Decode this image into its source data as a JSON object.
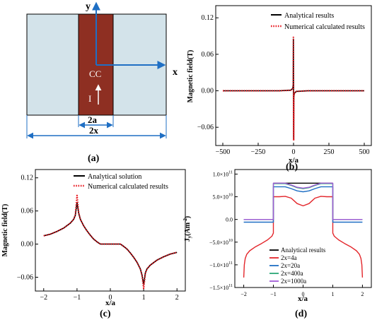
{
  "panels": {
    "a": {
      "label": "(a)",
      "axis_y": "y",
      "axis_x": "x",
      "conductor": "CC",
      "current": "I",
      "width_2a": "2a",
      "width_2x": "2x",
      "colors": {
        "slab": "#d3e3ea",
        "conductor": "#8e2f22",
        "arrow": "#1f6fc4"
      }
    },
    "b": {
      "label": "(b)"
    },
    "c": {
      "label": "(c)"
    },
    "d": {
      "label": "(d)"
    }
  },
  "chart_data": [
    {
      "panel": "b",
      "type": "line",
      "xlabel": "x/a",
      "ylabel": "Magnetic field(T)",
      "xlim": [
        -550,
        550
      ],
      "ylim": [
        -0.09,
        0.14
      ],
      "xticks": [
        -500,
        -250,
        0,
        250,
        500
      ],
      "xtick_labels": [
        "−500",
        "−250",
        "0",
        "250",
        "500"
      ],
      "yticks": [
        -0.06,
        0.0,
        0.06,
        0.12
      ],
      "ytick_labels": [
        "−0.06",
        "0.00",
        "0.06",
        "0.12"
      ],
      "legend": "top-right",
      "series": [
        {
          "name": "Analytical results",
          "color": "#000000",
          "style": "solid",
          "x": [
            -500,
            -100,
            -20,
            -5,
            -2,
            -1,
            0,
            1,
            2,
            5,
            20,
            100,
            500
          ],
          "y": [
            0.0,
            0.0,
            0.001,
            0.004,
            0.01,
            0.085,
            0.0,
            -0.078,
            -0.01,
            -0.004,
            -0.001,
            0.0,
            0.0
          ]
        },
        {
          "name": "Numerical calculated results",
          "color": "#e8141c",
          "style": "dotted",
          "x": [
            -500,
            -100,
            -20,
            -5,
            -2,
            -1,
            0,
            1,
            2,
            5,
            20,
            100,
            500
          ],
          "y": [
            0.0,
            0.0,
            0.001,
            0.004,
            0.01,
            0.088,
            0.0,
            -0.082,
            -0.01,
            -0.004,
            -0.001,
            0.0,
            0.0
          ]
        }
      ]
    },
    {
      "panel": "c",
      "type": "line",
      "xlabel": "x/a",
      "ylabel": "Magnetic field(T)",
      "xlim": [
        -2.25,
        2.25
      ],
      "ylim": [
        -0.085,
        0.135
      ],
      "xticks": [
        -2,
        -1,
        0,
        1,
        2
      ],
      "xtick_labels": [
        "−2",
        "−1",
        "0",
        "1",
        "2"
      ],
      "yticks": [
        -0.06,
        0.0,
        0.06,
        0.12
      ],
      "ytick_labels": [
        "−0.06",
        "0.00",
        "0.06",
        "0.12"
      ],
      "legend": "top-right",
      "series": [
        {
          "name": "Analytical solution",
          "color": "#000000",
          "style": "solid",
          "x": [
            -2.0,
            -1.8,
            -1.6,
            -1.4,
            -1.2,
            -1.1,
            -1.05,
            -1.0,
            -0.95,
            -0.9,
            -0.8,
            -0.7,
            -0.6,
            -0.5,
            -0.4,
            -0.3,
            0.3,
            0.4,
            0.5,
            0.6,
            0.7,
            0.8,
            0.9,
            0.95,
            1.0,
            1.05,
            1.1,
            1.2,
            1.4,
            1.6,
            1.8,
            2.0
          ],
          "y": [
            0.015,
            0.018,
            0.023,
            0.029,
            0.038,
            0.045,
            0.052,
            0.075,
            0.056,
            0.045,
            0.033,
            0.024,
            0.016,
            0.009,
            0.004,
            0.0,
            0.0,
            -0.004,
            -0.009,
            -0.016,
            -0.024,
            -0.033,
            -0.045,
            -0.056,
            -0.073,
            -0.052,
            -0.045,
            -0.038,
            -0.029,
            -0.023,
            -0.018,
            -0.015
          ]
        },
        {
          "name": "Numerical calculated results",
          "color": "#e8141c",
          "style": "dotted",
          "x": [
            -2.0,
            -1.8,
            -1.6,
            -1.4,
            -1.2,
            -1.1,
            -1.05,
            -1.0,
            -0.95,
            -0.9,
            -0.8,
            -0.7,
            -0.6,
            -0.5,
            -0.4,
            -0.3,
            0.3,
            0.4,
            0.5,
            0.6,
            0.7,
            0.8,
            0.9,
            0.95,
            1.0,
            1.05,
            1.1,
            1.2,
            1.4,
            1.6,
            1.8,
            2.0
          ],
          "y": [
            0.015,
            0.018,
            0.023,
            0.029,
            0.038,
            0.045,
            0.053,
            0.088,
            0.057,
            0.045,
            0.033,
            0.024,
            0.016,
            0.009,
            0.004,
            0.0,
            0.0,
            -0.004,
            -0.009,
            -0.016,
            -0.024,
            -0.033,
            -0.045,
            -0.057,
            -0.08,
            -0.053,
            -0.045,
            -0.038,
            -0.029,
            -0.023,
            -0.018,
            -0.015
          ]
        }
      ]
    },
    {
      "panel": "d",
      "type": "line",
      "xlabel": "x/a",
      "ylabel": "J",
      "ylabel_sub": "y",
      "ylabel_unit": "(Am",
      "ylabel_sup": "-2",
      "ylabel_close": ")",
      "xlim": [
        -2.3,
        2.3
      ],
      "ylim": [
        -150000000000.0,
        110000000000.0
      ],
      "xticks": [
        -2,
        -1,
        0,
        1,
        2
      ],
      "xtick_labels": [
        "−2",
        "−1",
        "0",
        "1",
        "2"
      ],
      "yticks": [
        -150000000000.0,
        -100000000000.0,
        -50000000000.0,
        0,
        50000000000.0,
        100000000000.0
      ],
      "ytick_labels": [
        {
          "m": "−1.5×10",
          "e": "11"
        },
        {
          "m": "−1.0×10",
          "e": "11"
        },
        {
          "m": "−5.0×10",
          "e": "10"
        },
        {
          "m": "0.0",
          "e": ""
        },
        {
          "m": "5.0×10",
          "e": "10"
        },
        {
          "m": "1.0×10",
          "e": "11"
        }
      ],
      "legend": "bottom-center",
      "series": [
        {
          "name": "Analytical results",
          "color": "#000000",
          "x": [
            -1.0,
            -0.95,
            -0.8,
            -0.6,
            -0.4,
            -0.2,
            0.0,
            0.2,
            0.4,
            0.6,
            0.8,
            0.95,
            1.0
          ],
          "y": [
            80000000000.0,
            80000000000.0,
            80000000000.0,
            80000000000.0,
            80000000000.0,
            80000000000.0,
            80000000000.0,
            80000000000.0,
            80000000000.0,
            80000000000.0,
            80000000000.0,
            80000000000.0,
            80000000000.0
          ]
        },
        {
          "name": "2x=4a",
          "color": "#e3262b",
          "x": [
            -2.0,
            -1.98,
            -1.95,
            -1.9,
            -1.8,
            -1.6,
            -1.4,
            -1.2,
            -1.05,
            -1.0,
            -1.0,
            -0.8,
            -0.6,
            -0.4,
            -0.3,
            -0.2,
            0.0,
            0.2,
            0.3,
            0.4,
            0.6,
            0.8,
            1.0,
            1.0,
            1.05,
            1.2,
            1.4,
            1.6,
            1.8,
            1.9,
            1.95,
            1.98,
            2.0
          ],
          "y": [
            -128000000000.0,
            -100000000000.0,
            -86000000000.0,
            -77000000000.0,
            -69000000000.0,
            -60000000000.0,
            -53000000000.0,
            -45000000000.0,
            -37000000000.0,
            -30000000000.0,
            50000000000.0,
            50000000000.0,
            51000000000.0,
            47000000000.0,
            41000000000.0,
            35000000000.0,
            30000000000.0,
            35000000000.0,
            41000000000.0,
            47000000000.0,
            51000000000.0,
            50000000000.0,
            50000000000.0,
            -30000000000.0,
            -37000000000.0,
            -45000000000.0,
            -53000000000.0,
            -60000000000.0,
            -69000000000.0,
            -77000000000.0,
            -86000000000.0,
            -100000000000.0,
            -128000000000.0
          ]
        },
        {
          "name": "2x=20a",
          "color": "#1f6fc4",
          "x": [
            -2.0,
            -1.0,
            -1.0,
            -0.6,
            -0.4,
            -0.2,
            0.0,
            0.2,
            0.4,
            0.6,
            1.0,
            1.0,
            2.0
          ],
          "y": [
            -6000000000.0,
            -6000000000.0,
            72000000000.0,
            72000000000.0,
            68000000000.0,
            63000000000.0,
            61000000000.0,
            63000000000.0,
            68000000000.0,
            72000000000.0,
            72000000000.0,
            -6000000000.0,
            -6000000000.0
          ]
        },
        {
          "name": "2x=400a",
          "color": "#2aa876",
          "x": [
            -2.0,
            -1.0,
            -1.0,
            -0.6,
            -0.4,
            -0.2,
            0.0,
            0.2,
            0.4,
            0.6,
            1.0,
            1.0,
            2.0
          ],
          "y": [
            0,
            0,
            79000000000.0,
            79000000000.0,
            75000000000.0,
            70000000000.0,
            68000000000.0,
            70000000000.0,
            75000000000.0,
            79000000000.0,
            79000000000.0,
            0,
            0
          ]
        },
        {
          "name": "2x=1000a",
          "color": "#a05bd6",
          "x": [
            -2.0,
            -1.0,
            -1.0,
            -0.6,
            -0.4,
            -0.2,
            0.0,
            0.2,
            0.4,
            0.6,
            1.0,
            1.0,
            2.0
          ],
          "y": [
            0,
            0,
            80000000000.0,
            80000000000.0,
            76000000000.0,
            71000000000.0,
            69000000000.0,
            71000000000.0,
            76000000000.0,
            80000000000.0,
            80000000000.0,
            0,
            0
          ]
        }
      ]
    }
  ]
}
